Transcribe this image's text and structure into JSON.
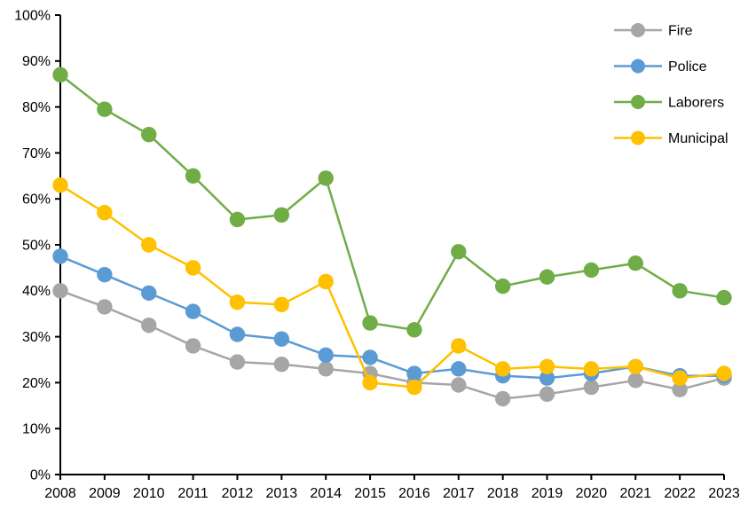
{
  "chart_data": {
    "type": "line",
    "title": "",
    "xlabel": "",
    "ylabel": "",
    "categories": [
      "2008",
      "2009",
      "2010",
      "2011",
      "2012",
      "2013",
      "2014",
      "2015",
      "2016",
      "2017",
      "2018",
      "2019",
      "2020",
      "2021",
      "2022",
      "2023"
    ],
    "series": [
      {
        "name": "Fire",
        "color": "#A6A6A6",
        "values": [
          40,
          36.5,
          32.5,
          28,
          24.5,
          24,
          23,
          22,
          20,
          19.5,
          16.5,
          17.5,
          19,
          20.5,
          18.5,
          21
        ]
      },
      {
        "name": "Police",
        "color": "#5B9BD5",
        "values": [
          47.5,
          43.5,
          39.5,
          35.5,
          30.5,
          29.5,
          26,
          25.5,
          22,
          23,
          21.5,
          21,
          22,
          23.5,
          21.5,
          21.5
        ]
      },
      {
        "name": "Laborers",
        "color": "#70AD47",
        "values": [
          87,
          79.5,
          74,
          65,
          55.5,
          56.5,
          64.5,
          33,
          31.5,
          48.5,
          41,
          43,
          44.5,
          46,
          40,
          38.5
        ]
      },
      {
        "name": "Municipal",
        "color": "#FFC000",
        "values": [
          63,
          57,
          50,
          45,
          37.5,
          37,
          42,
          20,
          19,
          28,
          23,
          23.5,
          23,
          23.5,
          21,
          22
        ]
      }
    ],
    "ylim": [
      0,
      100
    ],
    "ytick_step": 10,
    "ytick_labels": [
      "0%",
      "10%",
      "20%",
      "30%",
      "40%",
      "50%",
      "60%",
      "70%",
      "80%",
      "90%",
      "100%"
    ],
    "grid": false,
    "legend_position": "top-right",
    "legend_entries": [
      "Fire",
      "Police",
      "Laborers",
      "Municipal"
    ],
    "axis_color": "#000000",
    "background_color": "#FFFFFF",
    "marker_style": "filled-circle"
  }
}
